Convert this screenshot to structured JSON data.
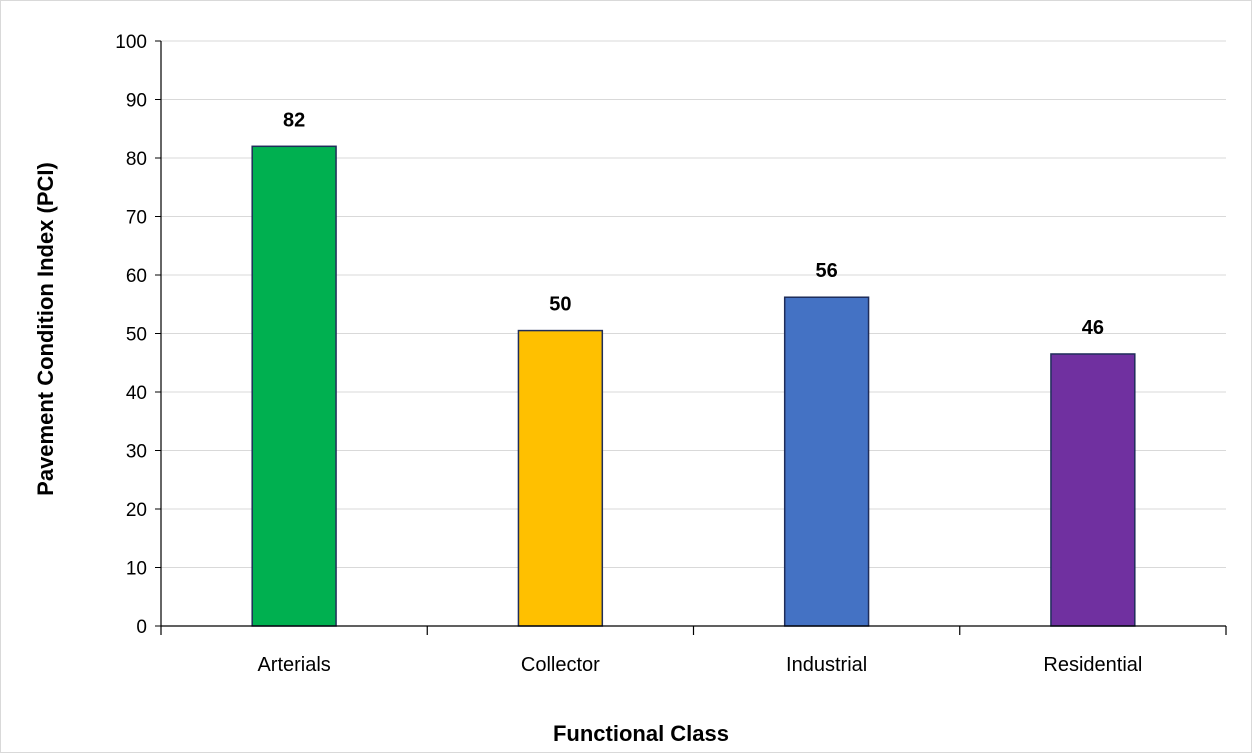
{
  "chart_data": {
    "type": "bar",
    "categories": [
      "Arterials",
      "Collector",
      "Industrial",
      "Residential"
    ],
    "values": [
      82,
      50.5,
      56.2,
      46.5
    ],
    "data_labels": [
      "82",
      "50",
      "56",
      "46"
    ],
    "colors": [
      "#00b050",
      "#ffc000",
      "#4472c4",
      "#7030a0"
    ],
    "bar_border_color": "#1f2d5a",
    "title": "",
    "xlabel": "Functional Class",
    "ylabel": "Pavement Condition Index (PCI)",
    "ylim": [
      0,
      100
    ],
    "yticks": [
      "0",
      "10",
      "20",
      "30",
      "40",
      "50",
      "60",
      "70",
      "80",
      "90",
      "100"
    ],
    "grid": true,
    "legend": "none"
  }
}
